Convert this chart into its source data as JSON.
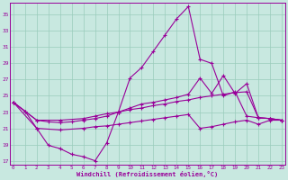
{
  "xlabel": "Windchill (Refroidissement éolien,°C)",
  "bg_color": "#c8e8e0",
  "line_color": "#990099",
  "grid_color": "#99ccbb",
  "xlim": [
    -0.3,
    23.3
  ],
  "ylim": [
    16.5,
    36.5
  ],
  "yticks": [
    17,
    19,
    21,
    23,
    25,
    27,
    29,
    31,
    33,
    35
  ],
  "xticks": [
    0,
    1,
    2,
    3,
    4,
    5,
    6,
    7,
    8,
    9,
    10,
    11,
    12,
    13,
    14,
    15,
    16,
    17,
    18,
    19,
    20,
    21,
    22,
    23
  ],
  "line1_x": [
    0,
    1,
    2,
    3,
    4,
    5,
    6,
    7,
    8,
    9,
    10,
    11,
    12,
    13,
    14,
    15,
    16,
    17,
    18,
    19,
    20,
    21,
    22,
    23
  ],
  "line1_y": [
    24.2,
    23.1,
    21.0,
    18.9,
    18.5,
    17.8,
    17.5,
    17.0,
    19.2,
    23.0,
    27.2,
    28.5,
    30.5,
    32.5,
    34.5,
    36.0,
    29.5,
    29.0,
    25.0,
    25.5,
    22.5,
    22.3,
    22.2,
    22.0
  ],
  "line2_x": [
    0,
    1,
    2,
    3,
    4,
    5,
    6,
    7,
    8,
    9,
    10,
    11,
    12,
    13,
    14,
    15,
    16,
    17,
    18,
    19,
    20,
    21,
    22,
    23
  ],
  "line2_y": [
    24.2,
    23.1,
    22.0,
    21.8,
    21.7,
    21.8,
    22.0,
    22.2,
    22.5,
    23.0,
    23.5,
    24.0,
    24.2,
    24.5,
    24.8,
    25.2,
    27.2,
    25.3,
    27.5,
    25.3,
    26.5,
    22.3,
    22.2,
    22.0
  ],
  "line3_x": [
    0,
    2,
    4,
    6,
    7,
    8,
    9,
    10,
    11,
    12,
    13,
    14,
    15,
    16,
    17,
    18,
    19,
    20,
    21,
    22,
    23
  ],
  "line3_y": [
    24.2,
    22.0,
    22.0,
    22.2,
    22.5,
    22.8,
    23.0,
    23.3,
    23.5,
    23.8,
    24.0,
    24.3,
    24.5,
    24.8,
    25.0,
    25.2,
    25.4,
    25.5,
    22.3,
    22.2,
    22.0
  ],
  "line4_x": [
    0,
    2,
    4,
    6,
    7,
    8,
    9,
    10,
    11,
    12,
    13,
    14,
    15,
    16,
    17,
    18,
    19,
    20,
    21,
    22,
    23
  ],
  "line4_y": [
    24.2,
    21.0,
    20.8,
    21.0,
    21.2,
    21.3,
    21.5,
    21.7,
    21.9,
    22.1,
    22.3,
    22.5,
    22.7,
    21.0,
    21.2,
    21.5,
    21.8,
    22.0,
    21.5,
    22.0,
    22.0
  ]
}
